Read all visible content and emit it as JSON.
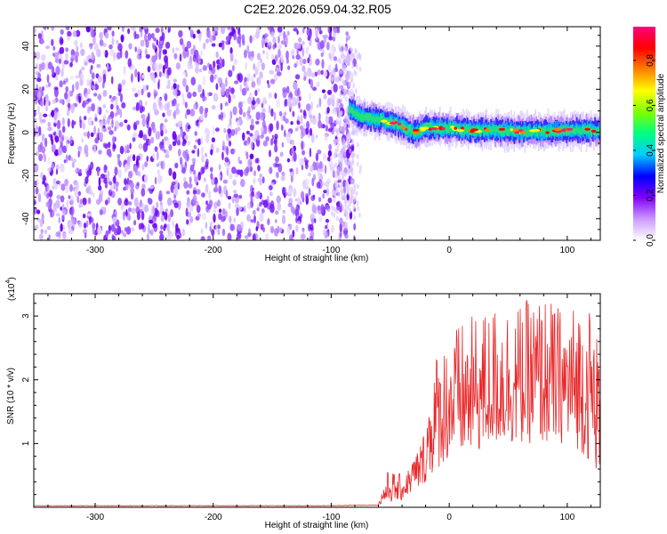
{
  "title": "C2E2.2026.059.04.32.R05",
  "chart_data": [
    {
      "type": "heatmap",
      "xlabel": "Height of straight line (km)",
      "ylabel": "Frequency (Hz)",
      "xlim": [
        -352,
        128
      ],
      "ylim": [
        -50,
        49
      ],
      "x_ticks": [
        -300,
        -200,
        -100,
        0,
        100
      ],
      "x_tick_labels": [
        "-300",
        "-200",
        "-100",
        "0",
        "100"
      ],
      "y_ticks": [
        -40,
        -20,
        0,
        20,
        40
      ],
      "y_tick_labels": [
        "-40",
        "-20",
        "0",
        "20",
        "40"
      ],
      "noise_region_x": [
        -352,
        -80
      ],
      "signal_ridge": {
        "x": [
          -85,
          -75,
          -60,
          -45,
          -30,
          -20,
          -10,
          0,
          20,
          40,
          60,
          80,
          100,
          128
        ],
        "frequency": [
          11,
          7,
          6,
          4,
          0,
          2,
          2,
          2,
          1,
          1,
          0.5,
          0.5,
          1,
          1
        ]
      },
      "colorbar": {
        "label": "Normalized spectral amplitude",
        "range": [
          0,
          0.95
        ],
        "ticks": [
          0.0,
          0.2,
          0.4,
          0.6,
          0.8
        ],
        "tick_labels": [
          "0.0",
          "0.2",
          "0.4",
          "0.6",
          "0.8"
        ],
        "colors": [
          "#ffffff",
          "#cc99ff",
          "#8000ff",
          "#0000ff",
          "#00ccff",
          "#00ff80",
          "#80ff00",
          "#ffff00",
          "#ff8000",
          "#ff0000",
          "#ff0080"
        ]
      }
    },
    {
      "type": "line",
      "xlabel": "Height of straight line (km)",
      "ylabel": "SNR (10 * v/v)",
      "scale_label": "(x10",
      "scale_exponent": "4",
      "xlim": [
        -352,
        128
      ],
      "ylim": [
        0,
        3.35
      ],
      "x_ticks": [
        -300,
        -200,
        -100,
        0,
        100
      ],
      "x_tick_labels": [
        "-300",
        "-200",
        "-100",
        "0",
        "100"
      ],
      "y_ticks": [
        1,
        2,
        3
      ],
      "y_tick_labels": [
        "1",
        "2",
        "3"
      ],
      "series": [
        {
          "name": "SNR",
          "color": "#e8282a",
          "x": [
            -352,
            -100,
            -60,
            -55,
            -50,
            -45,
            -40,
            -35,
            -30,
            -25,
            -20,
            -15,
            -10,
            -5,
            0,
            10,
            20,
            30,
            40,
            50,
            60,
            70,
            80,
            90,
            100,
            110,
            120,
            128
          ],
          "envelope_low": [
            0.02,
            0.02,
            0.03,
            0.05,
            0.08,
            0.1,
            0.1,
            0.2,
            0.25,
            0.3,
            0.4,
            0.5,
            0.6,
            0.7,
            0.75,
            0.8,
            0.85,
            0.9,
            1.0,
            1.0,
            1.0,
            1.0,
            1.0,
            1.0,
            1.0,
            0.9,
            0.7,
            0.5
          ],
          "envelope_high": [
            0.02,
            0.02,
            0.06,
            0.45,
            0.65,
            0.5,
            0.55,
            0.6,
            0.85,
            1.0,
            1.3,
            2.3,
            2.5,
            2.6,
            2.8,
            2.9,
            3.0,
            3.1,
            3.2,
            3.25,
            3.2,
            3.3,
            3.35,
            3.2,
            3.1,
            3.3,
            3.2,
            2.6
          ]
        }
      ]
    }
  ]
}
